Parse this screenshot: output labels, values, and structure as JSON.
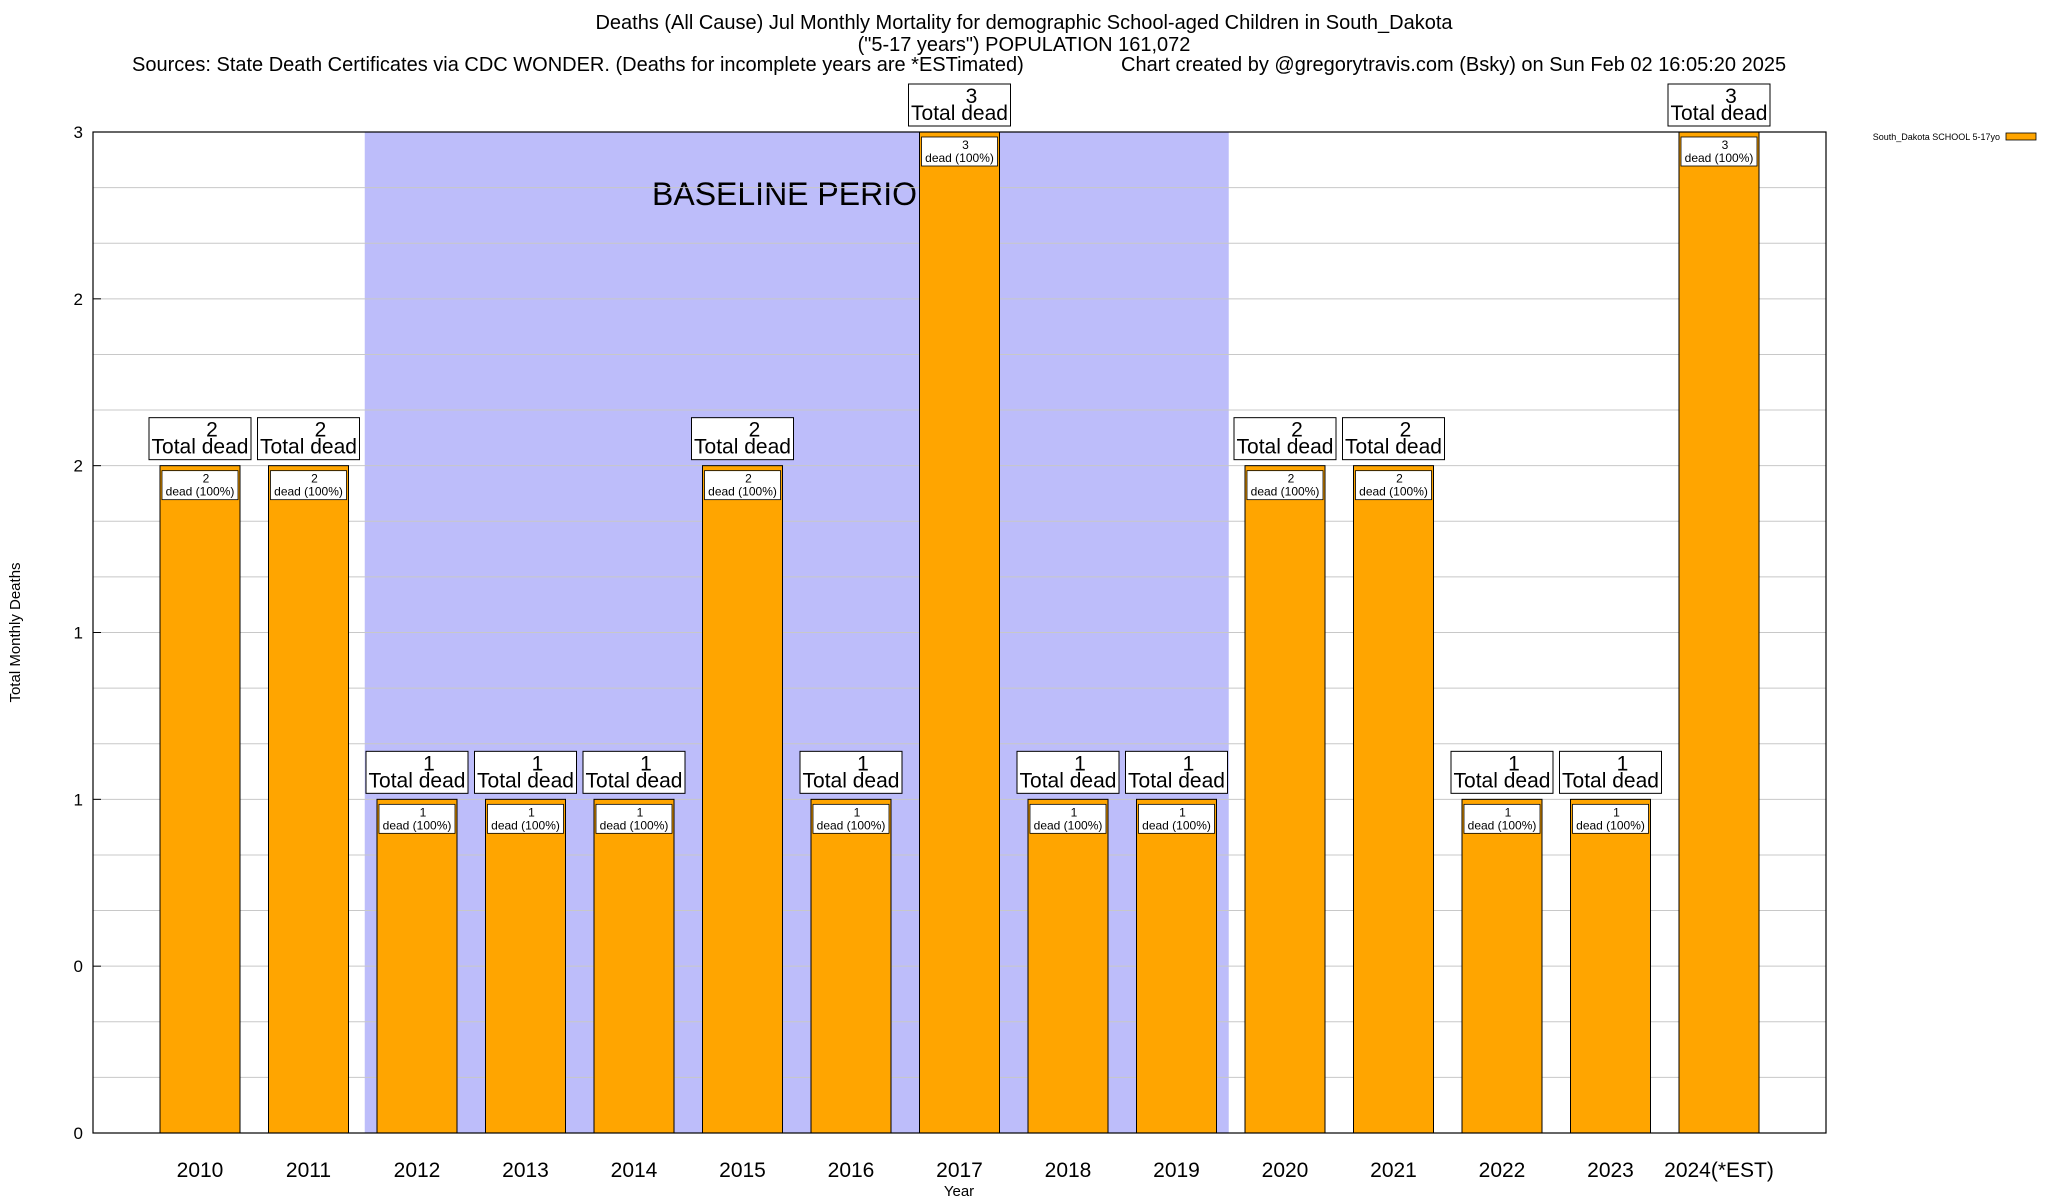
{
  "header": {
    "title_line1": "Deaths (All Cause) Jul Monthly Mortality for demographic School-aged Children in South_Dakota",
    "title_line2": "(\"5-17 years\") POPULATION 161,072",
    "sources": "Sources: State Death Certificates via CDC WONDER. (Deaths for incomplete years are *ESTimated)",
    "credit": "Chart created by @gregorytravis.com (Bsky) on Sun Feb 02 16:05:20 2025"
  },
  "chart_data": {
    "type": "bar",
    "categories": [
      "2010",
      "2011",
      "2012",
      "2013",
      "2014",
      "2015",
      "2016",
      "2017",
      "2018",
      "2019",
      "2020",
      "2021",
      "2022",
      "2023",
      "2024(*EST)"
    ],
    "series": [
      {
        "name": "South_Dakota SCHOOL 5-17yo",
        "values": [
          2,
          2,
          1,
          1,
          1,
          2,
          1,
          3,
          1,
          1,
          2,
          2,
          1,
          1,
          3
        ]
      }
    ],
    "total_label_suffix": "Total dead",
    "bar_label_suffix": "dead (100%)",
    "xlabel": "Year",
    "ylabel": "Total Monthly Deaths",
    "ylim": [
      0,
      3
    ],
    "y_tick_labels": [
      "0",
      "0",
      "1",
      "1",
      "2",
      "2",
      "3"
    ],
    "grid": true,
    "baseline_period": {
      "label": "BASELINE PERIOD",
      "start": "2012",
      "end": "2019"
    },
    "legend_position": "top-right",
    "colors": {
      "bar": "#FFA500",
      "baseline_shade": "#BDBDFA",
      "grid": "#C8C8C8"
    }
  }
}
